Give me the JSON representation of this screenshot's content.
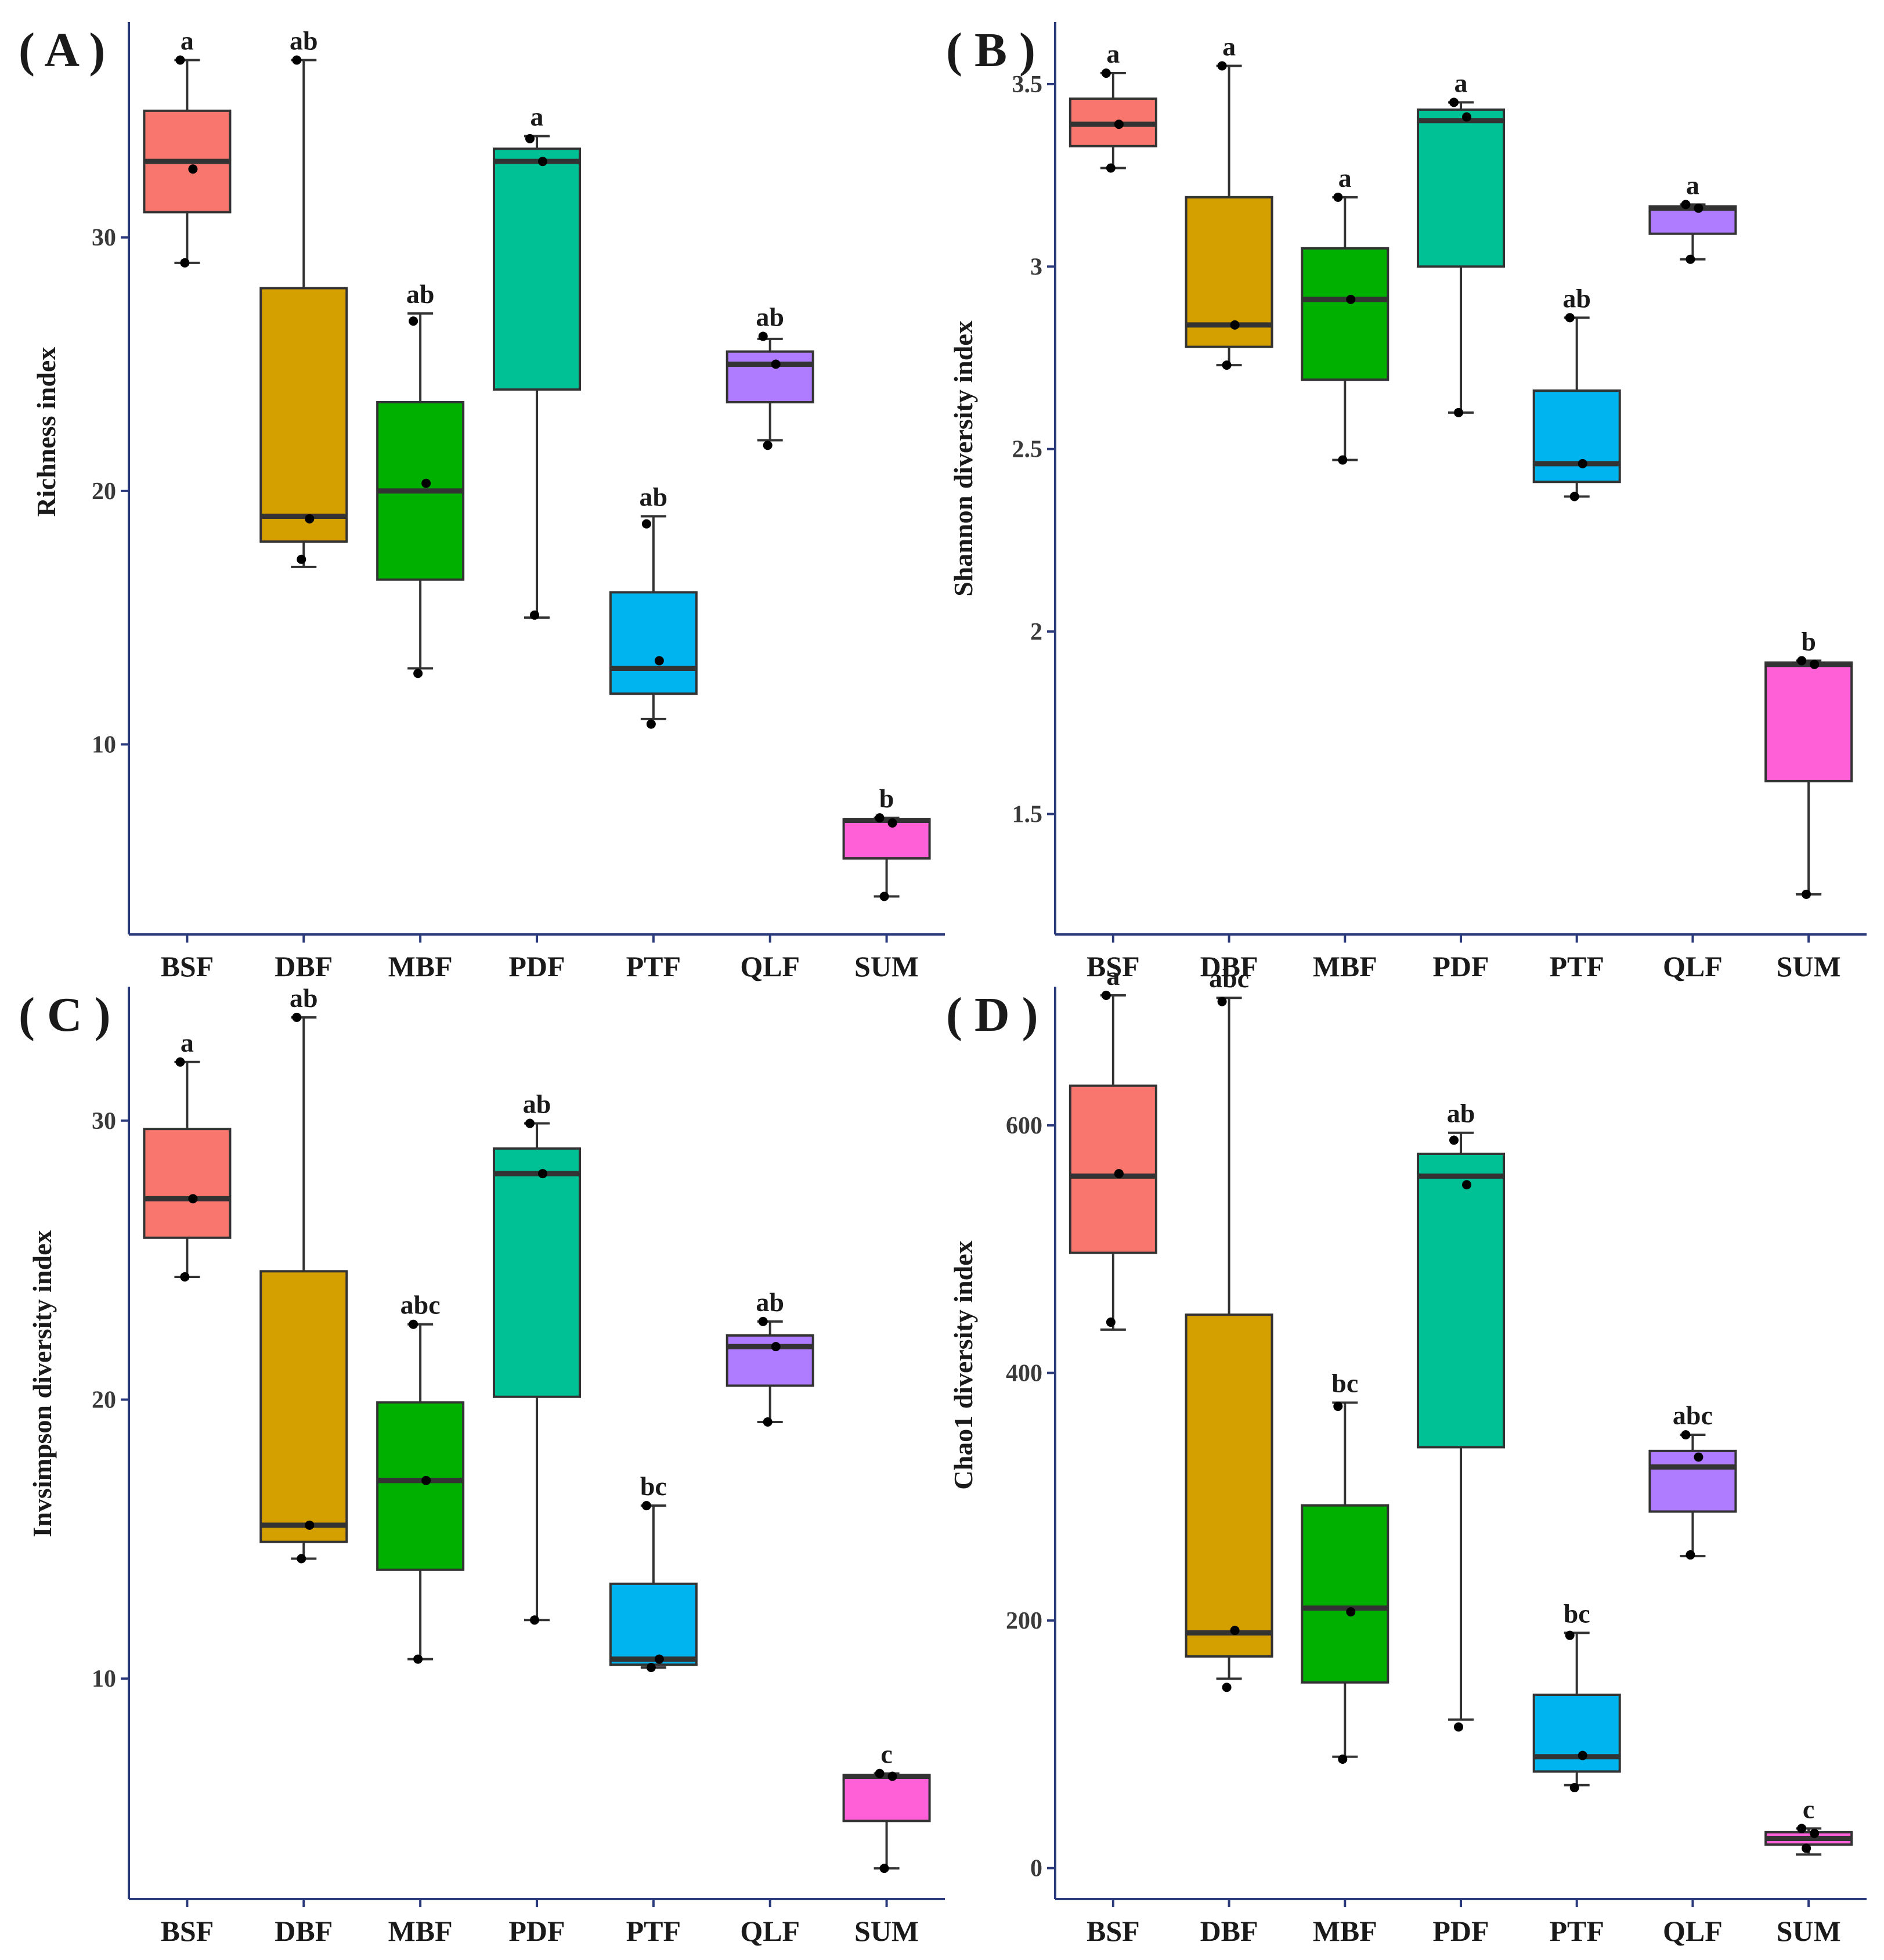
{
  "figure": {
    "categories": [
      "BSF",
      "DBF",
      "MBF",
      "PDF",
      "PTF",
      "QLF",
      "SUM"
    ],
    "colors": {
      "BSF": "#f8766d",
      "DBF": "#d4a000",
      "MBF": "#00b000",
      "PDF": "#00c096",
      "PTF": "#00b4ef",
      "QLF": "#b07cff",
      "SUM": "#ff60d8",
      "axis": "#2b3a7a",
      "outline": "#333333",
      "point": "#000000"
    }
  },
  "chart_data": [
    {
      "panel": "( A )",
      "type": "box",
      "ylabel": "Richness index",
      "ylim": [
        2.5,
        38.5
      ],
      "yticks": [
        10,
        20,
        30
      ],
      "boxes": [
        {
          "category": "BSF",
          "whisker_low": 29,
          "q1": 31,
          "median": 33,
          "q3": 35,
          "whisker_high": 37,
          "points": [
            37,
            32.7,
            29
          ],
          "letter": "a"
        },
        {
          "category": "DBF",
          "whisker_low": 17,
          "q1": 18,
          "median": 19,
          "q3": 28,
          "whisker_high": 37,
          "points": [
            37,
            18.9,
            17.3
          ],
          "letter": "ab"
        },
        {
          "category": "MBF",
          "whisker_low": 13,
          "q1": 16.5,
          "median": 20,
          "q3": 23.5,
          "whisker_high": 27,
          "points": [
            26.7,
            20.3,
            12.8
          ],
          "letter": "ab"
        },
        {
          "category": "PDF",
          "whisker_low": 15,
          "q1": 24,
          "median": 33,
          "q3": 33.5,
          "whisker_high": 34,
          "points": [
            33.9,
            33,
            15.1
          ],
          "letter": "a"
        },
        {
          "category": "PTF",
          "whisker_low": 11,
          "q1": 12,
          "median": 13,
          "q3": 16,
          "whisker_high": 19,
          "points": [
            18.7,
            13.3,
            10.8
          ],
          "letter": "ab"
        },
        {
          "category": "QLF",
          "whisker_low": 22,
          "q1": 23.5,
          "median": 25,
          "q3": 25.5,
          "whisker_high": 26,
          "points": [
            26.1,
            25,
            21.8
          ],
          "letter": "ab"
        },
        {
          "category": "SUM",
          "whisker_low": 4,
          "q1": 5.5,
          "median": 7,
          "q3": 7.05,
          "whisker_high": 7.1,
          "points": [
            7.1,
            6.9,
            4
          ],
          "letter": "b"
        }
      ]
    },
    {
      "panel": "( B )",
      "type": "box",
      "ylabel": "Shannon diversity index",
      "ylim": [
        1.17,
        3.67
      ],
      "yticks": [
        1.5,
        2.0,
        2.5,
        3.0,
        3.5
      ],
      "boxes": [
        {
          "category": "BSF",
          "whisker_low": 3.27,
          "q1": 3.33,
          "median": 3.39,
          "q3": 3.46,
          "whisker_high": 3.53,
          "points": [
            3.53,
            3.39,
            3.27
          ],
          "letter": "a"
        },
        {
          "category": "DBF",
          "whisker_low": 2.73,
          "q1": 2.78,
          "median": 2.84,
          "q3": 3.19,
          "whisker_high": 3.55,
          "points": [
            3.55,
            2.84,
            2.73
          ],
          "letter": "a"
        },
        {
          "category": "MBF",
          "whisker_low": 2.47,
          "q1": 2.69,
          "median": 2.91,
          "q3": 3.05,
          "whisker_high": 3.19,
          "points": [
            3.19,
            2.91,
            2.47
          ],
          "letter": "a"
        },
        {
          "category": "PDF",
          "whisker_low": 2.6,
          "q1": 3.0,
          "median": 3.4,
          "q3": 3.43,
          "whisker_high": 3.45,
          "points": [
            3.45,
            3.41,
            2.6
          ],
          "letter": "a"
        },
        {
          "category": "PTF",
          "whisker_low": 2.37,
          "q1": 2.41,
          "median": 2.46,
          "q3": 2.66,
          "whisker_high": 2.86,
          "points": [
            2.86,
            2.46,
            2.37
          ],
          "letter": "ab"
        },
        {
          "category": "QLF",
          "whisker_low": 3.02,
          "q1": 3.09,
          "median": 3.16,
          "q3": 3.165,
          "whisker_high": 3.17,
          "points": [
            3.17,
            3.16,
            3.02
          ],
          "letter": "a"
        },
        {
          "category": "SUM",
          "whisker_low": 1.28,
          "q1": 1.59,
          "median": 1.91,
          "q3": 1.915,
          "whisker_high": 1.92,
          "points": [
            1.92,
            1.91,
            1.28
          ],
          "letter": "b"
        }
      ]
    },
    {
      "panel": "( C )",
      "type": "box",
      "ylabel": "Invsimpson diversity index",
      "ylim": [
        2.1,
        34.8
      ],
      "yticks": [
        10,
        20,
        30
      ],
      "boxes": [
        {
          "category": "BSF",
          "whisker_low": 24.4,
          "q1": 25.8,
          "median": 27.2,
          "q3": 29.7,
          "whisker_high": 32.1,
          "points": [
            32.1,
            27.2,
            24.4
          ],
          "letter": "a"
        },
        {
          "category": "DBF",
          "whisker_low": 14.3,
          "q1": 14.9,
          "median": 15.5,
          "q3": 24.6,
          "whisker_high": 33.7,
          "points": [
            33.7,
            15.5,
            14.3
          ],
          "letter": "ab"
        },
        {
          "category": "MBF",
          "whisker_low": 10.7,
          "q1": 13.9,
          "median": 17.1,
          "q3": 19.9,
          "whisker_high": 22.7,
          "points": [
            22.7,
            17.1,
            10.7
          ],
          "letter": "abc"
        },
        {
          "category": "PDF",
          "whisker_low": 12.1,
          "q1": 20.1,
          "median": 28.1,
          "q3": 29.0,
          "whisker_high": 29.9,
          "points": [
            29.9,
            28.1,
            12.1
          ],
          "letter": "ab"
        },
        {
          "category": "PTF",
          "whisker_low": 10.4,
          "q1": 10.5,
          "median": 10.7,
          "q3": 13.4,
          "whisker_high": 16.2,
          "points": [
            16.2,
            10.7,
            10.4
          ],
          "letter": "bc"
        },
        {
          "category": "QLF",
          "whisker_low": 19.2,
          "q1": 20.5,
          "median": 21.9,
          "q3": 22.3,
          "whisker_high": 22.8,
          "points": [
            22.8,
            21.9,
            19.2
          ],
          "letter": "ab"
        },
        {
          "category": "SUM",
          "whisker_low": 3.2,
          "q1": 4.9,
          "median": 6.5,
          "q3": 6.55,
          "whisker_high": 6.6,
          "points": [
            6.6,
            6.5,
            3.2
          ],
          "letter": "c"
        }
      ]
    },
    {
      "panel": "( D )",
      "type": "box",
      "ylabel": "Chao1 diversity index",
      "ylim": [
        -25,
        712
      ],
      "yticks": [
        0,
        200,
        400,
        600
      ],
      "boxes": [
        {
          "category": "BSF",
          "whisker_low": 435,
          "q1": 497,
          "median": 559,
          "q3": 632,
          "whisker_high": 705,
          "points": [
            705,
            561,
            441
          ],
          "letter": "a"
        },
        {
          "category": "DBF",
          "whisker_low": 153,
          "q1": 171,
          "median": 190,
          "q3": 447,
          "whisker_high": 703,
          "points": [
            700,
            192,
            146
          ],
          "letter": "abc"
        },
        {
          "category": "MBF",
          "whisker_low": 90,
          "q1": 150,
          "median": 210,
          "q3": 293,
          "whisker_high": 376,
          "points": [
            373,
            207,
            88
          ],
          "letter": "bc"
        },
        {
          "category": "PDF",
          "whisker_low": 120,
          "q1": 340,
          "median": 559,
          "q3": 577,
          "whisker_high": 594,
          "points": [
            588,
            552,
            114
          ],
          "letter": "ab"
        },
        {
          "category": "PTF",
          "whisker_low": 67,
          "q1": 78,
          "median": 90,
          "q3": 140,
          "whisker_high": 190,
          "points": [
            188,
            91,
            65
          ],
          "letter": "bc"
        },
        {
          "category": "QLF",
          "whisker_low": 252,
          "q1": 288,
          "median": 324,
          "q3": 337,
          "whisker_high": 350,
          "points": [
            350,
            332,
            253
          ],
          "letter": "abc"
        },
        {
          "category": "SUM",
          "whisker_low": 11,
          "q1": 19,
          "median": 24,
          "q3": 29,
          "whisker_high": 32,
          "points": [
            32,
            28,
            16
          ],
          "letter": "c"
        }
      ]
    }
  ]
}
